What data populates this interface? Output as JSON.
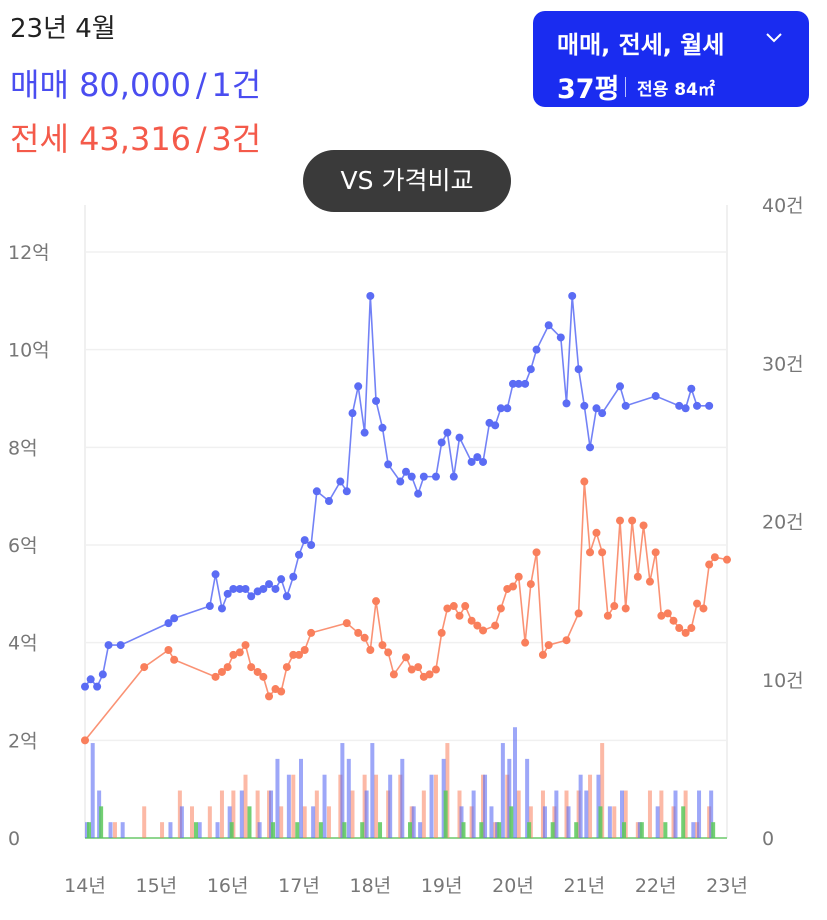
{
  "header": {
    "period": "23년 4월",
    "sale": {
      "label": "매매",
      "price": "80,000",
      "count": "1건"
    },
    "jeonse": {
      "label": "전세",
      "price": "43,316",
      "count": "3건"
    },
    "separator": "/"
  },
  "filter": {
    "label": "매매, 전세, 월세",
    "area_pyeong": "37평",
    "area_exclusive": "전용 84㎡"
  },
  "compare_button": {
    "label": "VS 가격비교"
  },
  "colors": {
    "sale": "#5b6cf4",
    "jeonse": "#f97f5c",
    "monthly": "#5ac85a",
    "accent": "#1a2cf0",
    "grid": "#f0f0f0"
  },
  "chart_data": {
    "type": "line",
    "title": "",
    "x_axis": {
      "range": [
        14,
        23
      ],
      "ticks": [
        14,
        15,
        16,
        17,
        18,
        19,
        20,
        21,
        22,
        23
      ],
      "tick_labels": [
        "14년",
        "15년",
        "16년",
        "17년",
        "18년",
        "19년",
        "20년",
        "21년",
        "22년",
        "23년"
      ]
    },
    "y_axis_left": {
      "unit": "억",
      "range": [
        0,
        12
      ],
      "ticks": [
        0,
        2,
        4,
        6,
        8,
        10,
        12
      ],
      "tick_labels": [
        "0",
        "2억",
        "4억",
        "6억",
        "8억",
        "10억",
        "12억"
      ]
    },
    "y_axis_right": {
      "unit": "건",
      "range": [
        0,
        40
      ],
      "ticks": [
        0,
        10,
        20,
        30,
        40
      ],
      "tick_labels": [
        "0",
        "10건",
        "20건",
        "30건",
        "40건"
      ]
    },
    "grid": true,
    "series": [
      {
        "name": "매매",
        "color": "#5b6cf4",
        "x": [
          14.0,
          14.08,
          14.17,
          14.25,
          14.33,
          14.5,
          15.17,
          15.25,
          15.75,
          15.83,
          15.92,
          16.0,
          16.08,
          16.17,
          16.25,
          16.33,
          16.42,
          16.5,
          16.58,
          16.67,
          16.75,
          16.83,
          16.92,
          17.0,
          17.08,
          17.17,
          17.25,
          17.42,
          17.58,
          17.67,
          17.75,
          17.83,
          17.92,
          18.0,
          18.08,
          18.17,
          18.25,
          18.42,
          18.5,
          18.58,
          18.67,
          18.75,
          18.92,
          19.0,
          19.08,
          19.17,
          19.25,
          19.42,
          19.5,
          19.58,
          19.67,
          19.75,
          19.83,
          19.92,
          20.0,
          20.08,
          20.17,
          20.25,
          20.33,
          20.5,
          20.67,
          20.75,
          20.83,
          20.92,
          21.0,
          21.08,
          21.17,
          21.25,
          21.5,
          21.58,
          22.0,
          22.33,
          22.42,
          22.5,
          22.58,
          22.75
        ],
        "y": [
          3.1,
          3.25,
          3.1,
          3.35,
          3.95,
          3.95,
          4.4,
          4.5,
          4.75,
          5.4,
          4.7,
          5.0,
          5.1,
          5.1,
          5.1,
          4.95,
          5.05,
          5.1,
          5.2,
          5.1,
          5.3,
          4.95,
          5.35,
          5.8,
          6.1,
          6.0,
          7.1,
          6.9,
          7.3,
          7.1,
          8.7,
          9.25,
          8.3,
          11.1,
          8.95,
          8.4,
          7.65,
          7.3,
          7.5,
          7.4,
          7.05,
          7.4,
          7.4,
          8.1,
          8.3,
          7.4,
          8.2,
          7.7,
          7.8,
          7.7,
          8.5,
          8.45,
          8.8,
          8.8,
          9.3,
          9.3,
          9.3,
          9.6,
          10.0,
          10.5,
          10.25,
          8.9,
          11.1,
          9.6,
          8.85,
          8.0,
          8.8,
          8.7,
          9.25,
          8.85,
          9.05,
          8.85,
          8.8,
          9.2,
          8.85,
          8.85
        ]
      },
      {
        "name": "전세",
        "color": "#f97f5c",
        "x": [
          14.0,
          14.83,
          15.17,
          15.25,
          15.83,
          15.92,
          16.0,
          16.08,
          16.17,
          16.25,
          16.33,
          16.42,
          16.5,
          16.58,
          16.67,
          16.75,
          16.83,
          16.92,
          17.0,
          17.08,
          17.17,
          17.67,
          17.83,
          17.92,
          18.0,
          18.08,
          18.17,
          18.25,
          18.33,
          18.5,
          18.58,
          18.67,
          18.75,
          18.83,
          18.92,
          19.0,
          19.08,
          19.17,
          19.25,
          19.33,
          19.42,
          19.5,
          19.58,
          19.75,
          19.83,
          19.92,
          20.0,
          20.08,
          20.17,
          20.25,
          20.33,
          20.42,
          20.5,
          20.75,
          20.92,
          21.0,
          21.08,
          21.17,
          21.25,
          21.33,
          21.42,
          21.5,
          21.58,
          21.67,
          21.75,
          21.83,
          21.92,
          22.0,
          22.08,
          22.17,
          22.25,
          22.33,
          22.42,
          22.5,
          22.58,
          22.67,
          22.75,
          22.83,
          23.0
        ],
        "y": [
          2.0,
          3.5,
          3.85,
          3.65,
          3.3,
          3.4,
          3.5,
          3.75,
          3.8,
          3.95,
          3.5,
          3.4,
          3.3,
          2.9,
          3.05,
          3.0,
          3.5,
          3.75,
          3.75,
          3.85,
          4.2,
          4.4,
          4.2,
          4.1,
          3.85,
          4.85,
          3.95,
          3.8,
          3.35,
          3.7,
          3.45,
          3.5,
          3.3,
          3.35,
          3.45,
          4.2,
          4.7,
          4.75,
          4.55,
          4.75,
          4.45,
          4.35,
          4.25,
          4.35,
          4.7,
          5.1,
          5.15,
          5.35,
          4.0,
          5.2,
          5.85,
          3.75,
          3.95,
          4.05,
          4.6,
          7.3,
          5.85,
          6.25,
          5.85,
          4.55,
          4.75,
          6.5,
          4.7,
          6.5,
          5.35,
          6.4,
          5.25,
          5.85,
          4.55,
          4.6,
          4.45,
          4.3,
          4.2,
          4.3,
          4.8,
          4.7,
          5.6,
          5.75,
          5.7
        ]
      }
    ],
    "volume_bars": {
      "unit": "건",
      "sale": {
        "x": [
          14.0,
          14.08,
          14.17,
          14.33,
          14.5,
          15.17,
          15.33,
          15.58,
          15.83,
          16.0,
          16.17,
          16.42,
          16.58,
          16.67,
          16.83,
          17.0,
          17.17,
          17.33,
          17.58,
          17.67,
          17.92,
          18.0,
          18.25,
          18.42,
          18.58,
          18.67,
          18.83,
          19.0,
          19.25,
          19.42,
          19.58,
          19.67,
          19.75,
          19.83,
          19.92,
          20.0,
          20.17,
          20.42,
          20.58,
          20.75,
          20.92,
          21.0,
          21.17,
          21.33,
          21.5,
          21.75,
          22.0,
          22.25,
          22.5,
          22.58,
          22.75
        ],
        "y": [
          1,
          6,
          3,
          1,
          1,
          1,
          2,
          1,
          1,
          2,
          3,
          1,
          3,
          5,
          4,
          5,
          2,
          4,
          6,
          5,
          3,
          6,
          4,
          5,
          2,
          1,
          4,
          5,
          2,
          3,
          4,
          2,
          1,
          6,
          5,
          7,
          5,
          2,
          3,
          2,
          4,
          3,
          4,
          2,
          3,
          1,
          2,
          3,
          1,
          3,
          3
        ]
      },
      "jeonse": {
        "x": [
          14.42,
          14.83,
          15.08,
          15.33,
          15.5,
          15.75,
          15.92,
          16.08,
          16.25,
          16.42,
          16.58,
          16.75,
          16.92,
          17.08,
          17.25,
          17.42,
          17.58,
          17.75,
          17.92,
          18.08,
          18.25,
          18.42,
          18.58,
          18.75,
          18.92,
          19.08,
          19.25,
          19.42,
          19.58,
          19.75,
          19.92,
          20.08,
          20.25,
          20.42,
          20.58,
          20.75,
          20.92,
          21.08,
          21.25,
          21.42,
          21.58,
          21.75,
          21.92,
          22.08,
          22.25,
          22.42,
          22.58,
          22.75
        ],
        "y": [
          1,
          2,
          1,
          3,
          2,
          2,
          3,
          3,
          4,
          3,
          3,
          2,
          4,
          2,
          3,
          2,
          4,
          3,
          4,
          4,
          3,
          4,
          2,
          3,
          4,
          6,
          3,
          2,
          4,
          1,
          4,
          3,
          2,
          3,
          2,
          3,
          3,
          4,
          6,
          2,
          3,
          1,
          3,
          3,
          2,
          3,
          1,
          2
        ]
      },
      "monthly": {
        "x": [
          14.0,
          14.17,
          15.5,
          16.0,
          16.25,
          16.58,
          16.92,
          17.25,
          17.58,
          17.83,
          18.08,
          18.5,
          19.0,
          19.25,
          19.5,
          19.75,
          19.92,
          20.17,
          20.5,
          20.83,
          21.17,
          21.5,
          21.75,
          22.08,
          22.33,
          22.75
        ],
        "y": [
          1,
          2,
          1,
          1,
          2,
          1,
          1,
          1,
          1,
          1,
          1,
          1,
          3,
          1,
          1,
          1,
          2,
          1,
          1,
          1,
          2,
          1,
          1,
          1,
          2,
          1
        ]
      }
    }
  }
}
